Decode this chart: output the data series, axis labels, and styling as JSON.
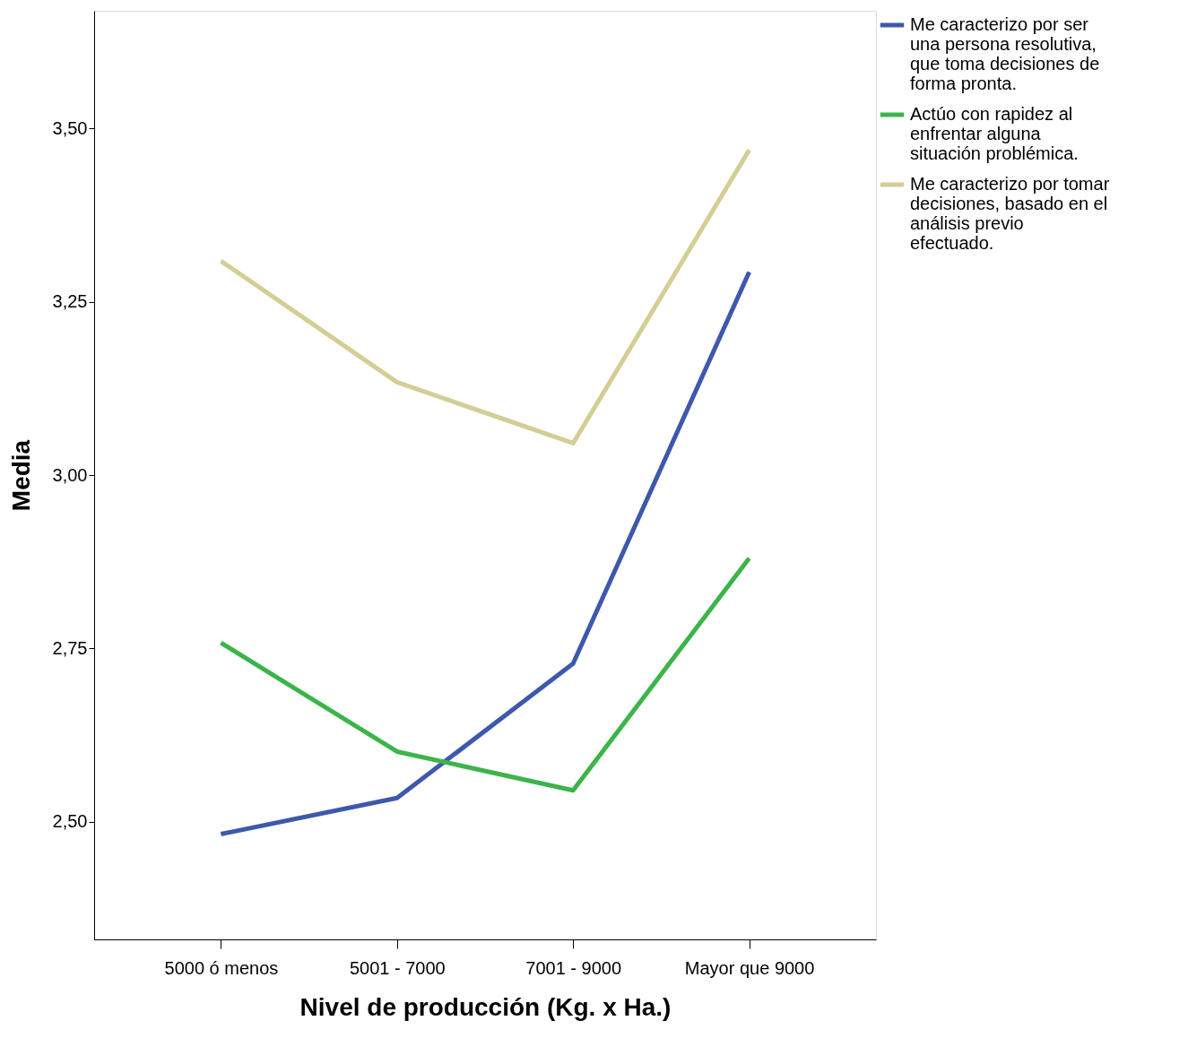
{
  "chart_data": {
    "type": "line",
    "xlabel": "Nivel de producción (Kg. x Ha.)",
    "ylabel": "Media",
    "categories": [
      "5000 ó menos",
      "5001 - 7000",
      "7001 - 9000",
      "Mayor que 9000"
    ],
    "series": [
      {
        "name": "Me caracterizo por ser una persona resolutiva, que toma decisiones de forma pronta.",
        "color": "#3e58ac",
        "values": [
          2.482,
          2.534,
          2.728,
          3.293
        ]
      },
      {
        "name": "Actúo con rapidez al enfrentar alguna situación problémica.",
        "color": "#3cb44a",
        "values": [
          2.758,
          2.601,
          2.545,
          2.88
        ]
      },
      {
        "name": "Me caracterizo por tomar decisiones, basado en el análisis previo efectuado.",
        "color": "#d4cd95",
        "values": [
          3.309,
          3.134,
          3.046,
          3.469
        ]
      }
    ],
    "ylim": [
      2.33,
      3.67
    ],
    "yticks": [
      {
        "value": 2.5,
        "label": "2,50"
      },
      {
        "value": 2.75,
        "label": "2,75"
      },
      {
        "value": 3.0,
        "label": "3,00"
      },
      {
        "value": 3.25,
        "label": "3,25"
      },
      {
        "value": 3.5,
        "label": "3,50"
      }
    ],
    "grid": false,
    "legend": "top right",
    "marker": "none",
    "line_style": "solid"
  }
}
